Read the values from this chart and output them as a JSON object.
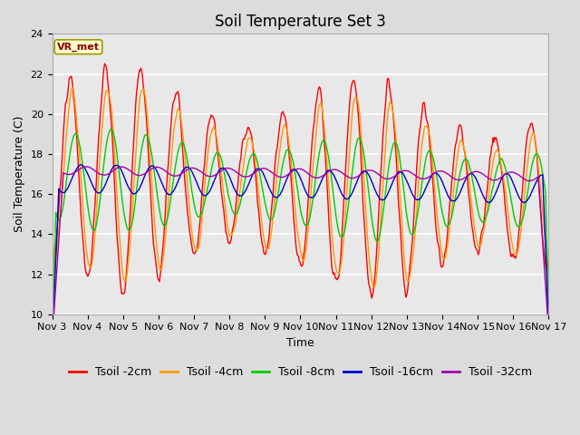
{
  "title": "Soil Temperature Set 3",
  "xlabel": "Time",
  "ylabel": "Soil Temperature (C)",
  "ylim": [
    10,
    24
  ],
  "x_tick_labels": [
    "Nov 3",
    "Nov 4",
    "Nov 5",
    "Nov 6",
    "Nov 7",
    "Nov 8",
    "Nov 9",
    "Nov 10",
    "Nov 11",
    "Nov 12",
    "Nov 13",
    "Nov 14",
    "Nov 15",
    "Nov 16",
    "Nov 17"
  ],
  "yticks": [
    10,
    12,
    14,
    16,
    18,
    20,
    22,
    24
  ],
  "colors": {
    "tsoil_2cm": "#FF0000",
    "tsoil_4cm": "#FF9900",
    "tsoil_8cm": "#00CC00",
    "tsoil_16cm": "#0000CC",
    "tsoil_32cm": "#AA00AA"
  },
  "legend_labels": [
    "Tsoil -2cm",
    "Tsoil -4cm",
    "Tsoil -8cm",
    "Tsoil -16cm",
    "Tsoil -32cm"
  ],
  "fig_bg_color": "#DCDCDC",
  "plot_bg_color": "#E8E8E8",
  "annotation_text": "VR_met",
  "annotation_bg": "#FFFFCC",
  "annotation_border": "#999900",
  "annotation_text_color": "#880000",
  "title_fontsize": 12,
  "axis_fontsize": 9,
  "tick_fontsize": 8,
  "legend_fontsize": 9
}
